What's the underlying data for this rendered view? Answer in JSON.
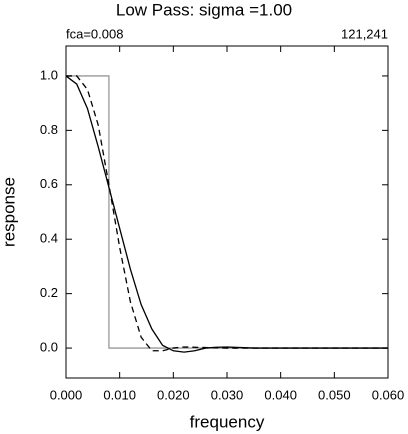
{
  "chart_data": {
    "type": "line",
    "title": "Low Pass:  sigma =1.00",
    "left_string": "fca=0.008",
    "right_string": "121,241",
    "x_label": "frequency",
    "y_label": "response",
    "xlim": [
      0,
      0.06
    ],
    "ylim": [
      -0.11,
      1.11
    ],
    "xticks": [
      {
        "value": 0,
        "label": "0.000"
      },
      {
        "value": 0.01,
        "label": "0.010"
      },
      {
        "value": 0.02,
        "label": "0.020"
      },
      {
        "value": 0.03,
        "label": "0.030"
      },
      {
        "value": 0.04,
        "label": "0.040"
      },
      {
        "value": 0.05,
        "label": "0.050"
      },
      {
        "value": 0.06,
        "label": "0.060"
      }
    ],
    "yticks": [
      {
        "value": 0,
        "label": "0.0"
      },
      {
        "value": 0.2,
        "label": "0.2"
      },
      {
        "value": 0.4,
        "label": "0.4"
      },
      {
        "value": 0.6,
        "label": "0.6"
      },
      {
        "value": 0.8,
        "label": "0.8"
      },
      {
        "value": 1,
        "label": "1.0"
      }
    ],
    "series": [
      {
        "color": "#999999",
        "style": "solid",
        "x": [
          0,
          0.008,
          0.008,
          0.06
        ],
        "values": [
          1,
          1,
          0,
          0
        ]
      },
      {
        "color": "#000000",
        "style": "solid",
        "x": [
          0,
          0.002,
          0.004,
          0.006,
          0.008,
          0.01,
          0.012,
          0.014,
          0.016,
          0.018,
          0.02,
          0.022,
          0.024,
          0.026,
          0.028,
          0.03,
          0.035,
          0.04,
          0.06
        ],
        "values": [
          1,
          0.97,
          0.88,
          0.74,
          0.59,
          0.44,
          0.29,
          0.16,
          0.07,
          0.01,
          -0.01,
          -0.015,
          -0.01,
          0,
          0.003,
          0.004,
          0,
          0,
          0
        ]
      },
      {
        "color": "#000000",
        "style": "dashed",
        "x": [
          0,
          0.002,
          0.004,
          0.006,
          0.008,
          0.01,
          0.012,
          0.014,
          0.016,
          0.018,
          0.02,
          0.022,
          0.026,
          0.03,
          0.06
        ],
        "values": [
          1,
          1,
          0.95,
          0.82,
          0.6,
          0.37,
          0.17,
          0.04,
          -0.01,
          -0.01,
          0,
          0.004,
          0.002,
          0,
          0
        ]
      }
    ]
  }
}
